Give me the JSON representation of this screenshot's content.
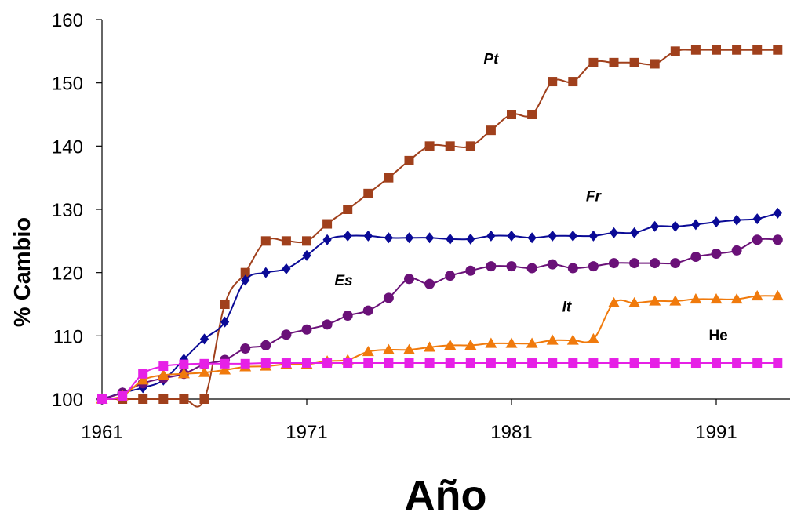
{
  "chart_data": {
    "type": "line",
    "title": "",
    "xlabel": "Año",
    "ylabel": "% Cambio",
    "xlim": [
      1961,
      1995
    ],
    "ylim": [
      100,
      160
    ],
    "x_ticks": [
      1961,
      1971,
      1981,
      1991
    ],
    "y_ticks": [
      100,
      110,
      120,
      130,
      140,
      150,
      160
    ],
    "grid": false,
    "legend": "none",
    "series": [
      {
        "name": "Pt",
        "color": "#A0401C",
        "marker": "square",
        "label_at": [
          1980,
          153
        ],
        "x": [
          1961,
          1962,
          1963,
          1964,
          1965,
          1966,
          1967,
          1968,
          1969,
          1970,
          1971,
          1972,
          1973,
          1974,
          1975,
          1976,
          1977,
          1978,
          1979,
          1980,
          1981,
          1982,
          1983,
          1984,
          1985,
          1986,
          1987,
          1988,
          1989,
          1990,
          1991,
          1992,
          1993,
          1994
        ],
        "y": [
          100,
          100,
          100,
          100,
          100,
          100,
          115,
          120,
          125,
          125,
          125,
          127.7,
          130,
          132.5,
          135,
          137.7,
          140,
          140,
          140,
          142.5,
          145,
          145,
          150.2,
          150.2,
          153.2,
          153.2,
          153.2,
          153,
          155,
          155.2,
          155.2,
          155.2,
          155.2,
          155.2
        ]
      },
      {
        "name": "Fr",
        "color": "#0A0A96",
        "marker": "diamond",
        "label_at": [
          1985,
          131.3
        ],
        "x": [
          1961,
          1962,
          1963,
          1964,
          1965,
          1966,
          1967,
          1968,
          1969,
          1970,
          1971,
          1972,
          1973,
          1974,
          1975,
          1976,
          1977,
          1978,
          1979,
          1980,
          1981,
          1982,
          1983,
          1984,
          1985,
          1986,
          1987,
          1988,
          1989,
          1990,
          1991,
          1992,
          1993,
          1994
        ],
        "y": [
          100,
          101,
          101.8,
          103,
          106.3,
          109.5,
          112.2,
          118.8,
          120,
          120.6,
          122.7,
          125.2,
          125.8,
          125.8,
          125.5,
          125.5,
          125.5,
          125.3,
          125.3,
          125.8,
          125.8,
          125.5,
          125.8,
          125.8,
          125.8,
          126.3,
          126.3,
          127.3,
          127.3,
          127.6,
          128,
          128.3,
          128.5,
          129.4
        ]
      },
      {
        "name": "Es",
        "color": "#6A1178",
        "marker": "circle",
        "label_at": [
          1972.8,
          118
        ],
        "x": [
          1961,
          1962,
          1963,
          1964,
          1965,
          1966,
          1967,
          1968,
          1969,
          1970,
          1971,
          1972,
          1973,
          1974,
          1975,
          1976,
          1977,
          1978,
          1979,
          1980,
          1981,
          1982,
          1983,
          1984,
          1985,
          1986,
          1987,
          1988,
          1989,
          1990,
          1991,
          1992,
          1993,
          1994
        ],
        "y": [
          100,
          101,
          102.5,
          103.3,
          104,
          105.5,
          106.2,
          108,
          108.5,
          110.2,
          111,
          111.8,
          113.2,
          114,
          116,
          119,
          118.2,
          119.5,
          120.3,
          121,
          121,
          120.7,
          121.3,
          120.7,
          121,
          121.5,
          121.5,
          121.5,
          121.5,
          122.5,
          123,
          123.5,
          125.2,
          125.2
        ]
      },
      {
        "name": "It",
        "color": "#F07A0C",
        "marker": "triangle",
        "label_at": [
          1983.7,
          113.8
        ],
        "x": [
          1961,
          1962,
          1963,
          1964,
          1965,
          1966,
          1967,
          1968,
          1969,
          1970,
          1971,
          1972,
          1973,
          1974,
          1975,
          1976,
          1977,
          1978,
          1979,
          1980,
          1981,
          1982,
          1983,
          1984,
          1985,
          1986,
          1987,
          1988,
          1989,
          1990,
          1991,
          1992,
          1993,
          1994
        ],
        "y": [
          100,
          100.5,
          103,
          103.8,
          104,
          104.2,
          104.6,
          105.1,
          105.2,
          105.5,
          105.5,
          106,
          106.2,
          107.5,
          107.8,
          107.8,
          108.2,
          108.5,
          108.5,
          108.8,
          108.8,
          108.8,
          109.3,
          109.3,
          109.5,
          115.2,
          115.2,
          115.5,
          115.5,
          115.8,
          115.8,
          115.8,
          116.3,
          116.3
        ]
      },
      {
        "name": "He",
        "color": "#E620E6",
        "marker": "square",
        "label_at": [
          1991.1,
          109.3
        ],
        "x": [
          1961,
          1962,
          1963,
          1964,
          1965,
          1966,
          1967,
          1968,
          1969,
          1970,
          1971,
          1972,
          1973,
          1974,
          1975,
          1976,
          1977,
          1978,
          1979,
          1980,
          1981,
          1982,
          1983,
          1984,
          1985,
          1986,
          1987,
          1988,
          1989,
          1990,
          1991,
          1992,
          1993,
          1994
        ],
        "y": [
          100,
          100.5,
          104,
          105.2,
          105.5,
          105.6,
          105.6,
          105.6,
          105.7,
          105.7,
          105.7,
          105.7,
          105.7,
          105.7,
          105.7,
          105.7,
          105.7,
          105.7,
          105.7,
          105.7,
          105.7,
          105.7,
          105.7,
          105.7,
          105.7,
          105.7,
          105.7,
          105.7,
          105.7,
          105.7,
          105.7,
          105.7,
          105.7,
          105.7
        ]
      }
    ]
  }
}
